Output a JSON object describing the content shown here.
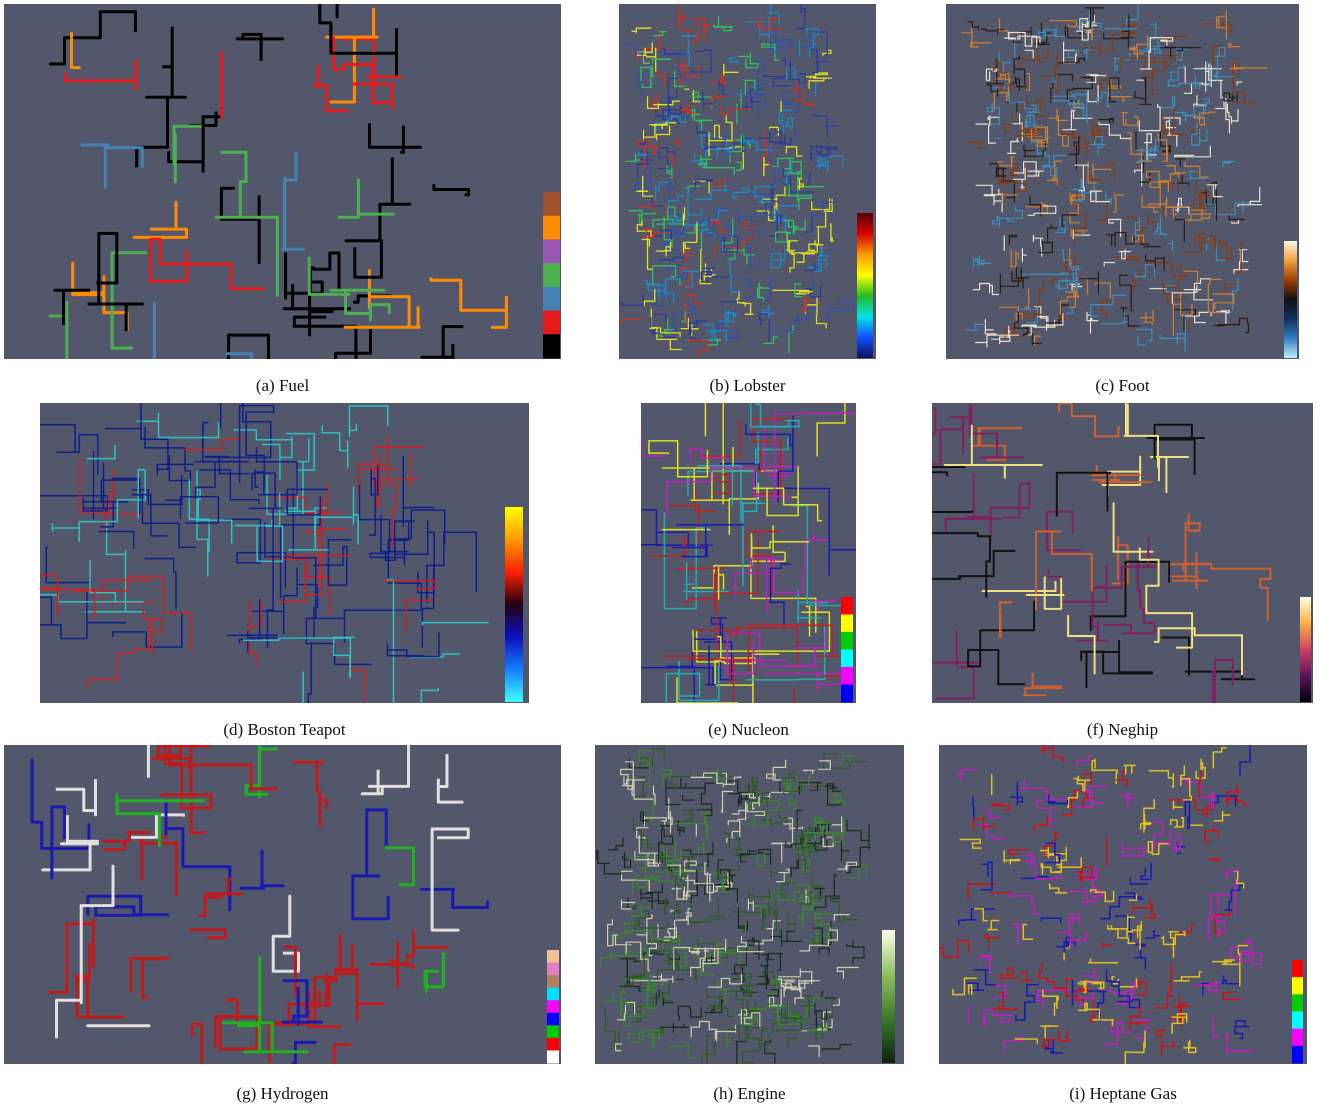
{
  "panels": [
    {
      "caption": "(a) Fuel"
    },
    {
      "caption": "(b) Lobster"
    },
    {
      "caption": "(c) Foot"
    },
    {
      "caption": "(d) Boston Teapot"
    },
    {
      "caption": "(e) Nucleon"
    },
    {
      "caption": "(f) Neghip"
    },
    {
      "caption": "(g) Hydrogen"
    },
    {
      "caption": "(h) Engine"
    },
    {
      "caption": "(i) Heptane Gas"
    }
  ]
}
